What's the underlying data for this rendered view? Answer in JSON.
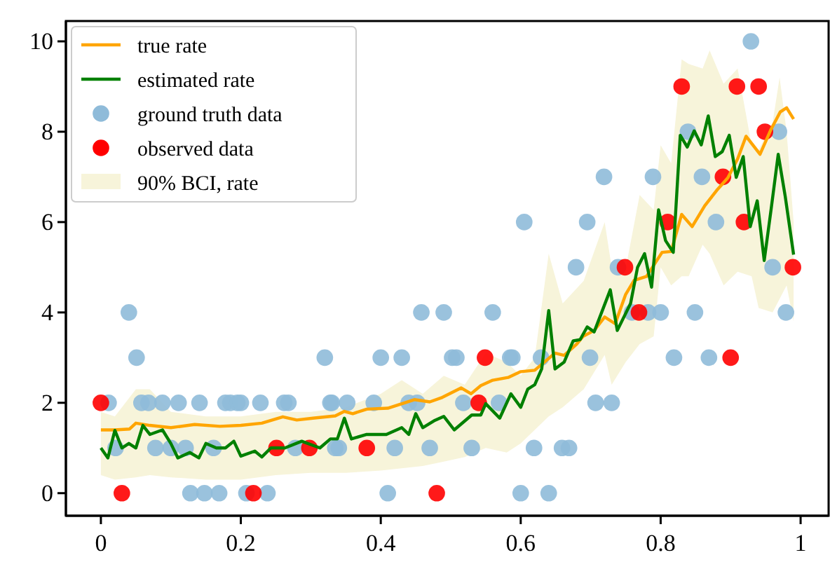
{
  "chart_data": {
    "type": "line",
    "xlim": [
      -0.05,
      1.04
    ],
    "ylim": [
      -0.5,
      10.45
    ],
    "xticks": [
      0,
      0.2,
      0.4,
      0.6,
      0.8,
      1
    ],
    "yticks": [
      0,
      2,
      4,
      6,
      8,
      10
    ],
    "legend": "top left",
    "grid": false,
    "series": [
      {
        "name": "true rate",
        "color": "#ffa500",
        "line_style": "solid",
        "x": [
          0,
          0.02,
          0.041,
          0.05,
          0.07,
          0.1,
          0.134,
          0.17,
          0.2,
          0.23,
          0.26,
          0.28,
          0.303,
          0.335,
          0.348,
          0.36,
          0.38,
          0.41,
          0.448,
          0.47,
          0.488,
          0.515,
          0.529,
          0.543,
          0.56,
          0.582,
          0.6,
          0.62,
          0.649,
          0.662,
          0.68,
          0.689,
          0.705,
          0.72,
          0.735,
          0.75,
          0.762,
          0.78,
          0.802,
          0.815,
          0.83,
          0.845,
          0.863,
          0.88,
          0.896,
          0.91,
          0.922,
          0.942,
          0.957,
          0.971,
          0.98,
          0.99
        ],
        "values": [
          1.4,
          1.4,
          1.42,
          1.55,
          1.5,
          1.45,
          1.52,
          1.48,
          1.5,
          1.55,
          1.69,
          1.62,
          1.66,
          1.71,
          1.81,
          1.76,
          1.86,
          1.88,
          2.07,
          2.02,
          2.12,
          2.33,
          2.2,
          2.38,
          2.5,
          2.56,
          2.69,
          2.72,
          3.1,
          3.05,
          3.3,
          3.47,
          3.6,
          3.9,
          3.75,
          4.4,
          4.71,
          4.8,
          5.33,
          5.35,
          6.17,
          5.9,
          6.36,
          6.7,
          6.98,
          7.4,
          7.9,
          7.5,
          8.03,
          8.44,
          8.53,
          8.28
        ]
      },
      {
        "name": "estimated rate",
        "color": "#008000",
        "line_style": "solid",
        "x": [
          0,
          0.01,
          0.02,
          0.03,
          0.04,
          0.05,
          0.06,
          0.07,
          0.088,
          0.1,
          0.11,
          0.127,
          0.14,
          0.15,
          0.165,
          0.178,
          0.19,
          0.2,
          0.22,
          0.23,
          0.243,
          0.263,
          0.287,
          0.313,
          0.328,
          0.338,
          0.348,
          0.358,
          0.38,
          0.408,
          0.43,
          0.44,
          0.45,
          0.46,
          0.476,
          0.49,
          0.505,
          0.53,
          0.543,
          0.55,
          0.57,
          0.586,
          0.6,
          0.61,
          0.62,
          0.63,
          0.64,
          0.649,
          0.662,
          0.675,
          0.685,
          0.695,
          0.705,
          0.728,
          0.738,
          0.757,
          0.767,
          0.777,
          0.787,
          0.797,
          0.807,
          0.818,
          0.828,
          0.838,
          0.848,
          0.858,
          0.868,
          0.878,
          0.888,
          0.898,
          0.908,
          0.918,
          0.928,
          0.938,
          0.948,
          0.958,
          0.968,
          0.978,
          0.99
        ],
        "values": [
          1.0,
          0.78,
          1.39,
          1.0,
          1.1,
          1.0,
          1.5,
          1.3,
          1.4,
          1.1,
          0.78,
          0.9,
          0.78,
          1.1,
          1.0,
          1.0,
          1.15,
          0.82,
          0.93,
          0.8,
          1.0,
          1.0,
          1.15,
          1.0,
          1.2,
          1.2,
          1.66,
          1.2,
          1.3,
          1.3,
          1.45,
          1.3,
          1.76,
          1.45,
          1.6,
          1.7,
          1.4,
          1.73,
          1.73,
          1.98,
          1.66,
          2.2,
          1.9,
          2.3,
          2.4,
          2.75,
          4.04,
          2.75,
          2.9,
          3.37,
          3.4,
          3.68,
          3.57,
          4.5,
          3.6,
          4.2,
          5.0,
          5.3,
          4.56,
          6.27,
          5.59,
          5.33,
          7.92,
          7.66,
          8.02,
          7.71,
          8.35,
          7.45,
          7.56,
          7.92,
          6.99,
          7.45,
          5.9,
          6.47,
          5.15,
          6.3,
          7.5,
          6.57,
          5.28
        ]
      },
      {
        "name": "ground truth data",
        "type": "scatter",
        "color": "#8fbbd9",
        "marker": "circle",
        "x": [
          0.011,
          0.058,
          0.068,
          0.088,
          0.111,
          0.141,
          0.178,
          0.185,
          0.195,
          0.2,
          0.228,
          0.262,
          0.268,
          0.328,
          0.04,
          0.051,
          0.021,
          0.078,
          0.1,
          0.121,
          0.161,
          0.278,
          0.335,
          0.128,
          0.148,
          0.169,
          0.208,
          0.238,
          0.458,
          0.49,
          0.56,
          0.679,
          0.32,
          0.4,
          0.43,
          0.502,
          0.508,
          0.585,
          0.588,
          0.629,
          0.699,
          0.33,
          0.352,
          0.39,
          0.44,
          0.452,
          0.518,
          0.569,
          0.707,
          0.34,
          0.42,
          0.47,
          0.53,
          0.619,
          0.659,
          0.669,
          0.41,
          0.6,
          0.64,
          0.605,
          0.929,
          0.839,
          0.969,
          0.719,
          0.789,
          0.859,
          0.695,
          0.879,
          0.739,
          0.96,
          0.759,
          0.782,
          0.8,
          0.849,
          0.979,
          0.819,
          0.869,
          0.73
        ],
        "values": [
          2,
          2,
          2,
          2,
          2,
          2,
          2,
          2,
          2,
          2,
          2,
          2,
          2,
          2,
          4,
          3,
          1,
          1,
          1,
          1,
          1,
          1,
          1,
          0,
          0,
          0,
          0,
          0,
          4,
          4,
          4,
          5,
          3,
          3,
          3,
          3,
          3,
          3,
          3,
          3,
          3,
          2,
          2,
          2,
          2,
          2,
          2,
          2,
          2,
          1,
          1,
          1,
          1,
          1,
          1,
          1,
          0,
          0,
          0,
          6,
          10,
          8,
          8,
          7,
          7,
          7,
          6,
          6,
          5,
          5,
          4,
          4,
          4,
          4,
          4,
          3,
          3,
          2
        ]
      },
      {
        "name": "observed data",
        "type": "scatter",
        "color": "#ff0000",
        "marker": "circle",
        "x": [
          0,
          0.03,
          0.218,
          0.251,
          0.298,
          0.38,
          0.48,
          0.54,
          0.549,
          0.749,
          0.769,
          0.81,
          0.83,
          0.889,
          0.9,
          0.909,
          0.919,
          0.94,
          0.949,
          0.989
        ],
        "values": [
          2,
          0,
          0,
          1,
          1,
          1,
          0,
          2,
          3,
          5,
          4,
          6,
          9,
          7,
          3,
          9,
          6,
          9,
          8,
          5
        ]
      },
      {
        "name": "90% BCI, rate",
        "type": "area",
        "color": "#f7f4da",
        "x": [
          0,
          0.02,
          0.05,
          0.07,
          0.1,
          0.15,
          0.2,
          0.25,
          0.3,
          0.35,
          0.4,
          0.43,
          0.46,
          0.49,
          0.52,
          0.55,
          0.58,
          0.6,
          0.62,
          0.64,
          0.66,
          0.69,
          0.72,
          0.73,
          0.75,
          0.77,
          0.79,
          0.8,
          0.815,
          0.83,
          0.84,
          0.86,
          0.87,
          0.89,
          0.91,
          0.93,
          0.94,
          0.96,
          0.97,
          0.98,
          0.99
        ],
        "values": [
          null,
          null,
          null,
          null,
          null,
          null,
          null,
          null,
          null,
          null,
          null,
          null,
          null,
          null,
          null,
          null,
          null,
          null,
          null,
          null,
          null,
          null,
          null,
          null,
          null,
          null,
          null,
          null,
          null,
          null,
          null,
          null,
          null,
          null,
          null,
          null,
          null,
          null,
          null,
          null,
          null
        ],
        "lower": [
          0.4,
          0.3,
          0.35,
          0.4,
          0.35,
          0.3,
          0.3,
          0.4,
          0.45,
          0.45,
          0.5,
          0.55,
          0.6,
          0.7,
          0.8,
          1.0,
          0.9,
          1.1,
          1.4,
          1.7,
          1.9,
          2.3,
          3.06,
          2.4,
          2.9,
          3.3,
          3.47,
          5.0,
          4.6,
          4.8,
          4.8,
          5.5,
          5.3,
          4.6,
          4.9,
          4.8,
          4.1,
          4.0,
          4.3,
          4.6,
          3.8
        ],
        "upper": [
          1.8,
          1.7,
          2.3,
          2.3,
          1.8,
          1.7,
          1.7,
          1.8,
          1.8,
          1.9,
          2.2,
          2.5,
          2.2,
          2.6,
          2.4,
          3.1,
          2.9,
          2.6,
          3.0,
          5.3,
          4.2,
          4.7,
          6.0,
          5.0,
          4.97,
          6.6,
          6.27,
          7.7,
          7.3,
          9.6,
          9.5,
          9.4,
          9.8,
          9.06,
          9.4,
          7.7,
          7.6,
          8.2,
          9.2,
          8.0,
          6.0
        ]
      }
    ]
  }
}
